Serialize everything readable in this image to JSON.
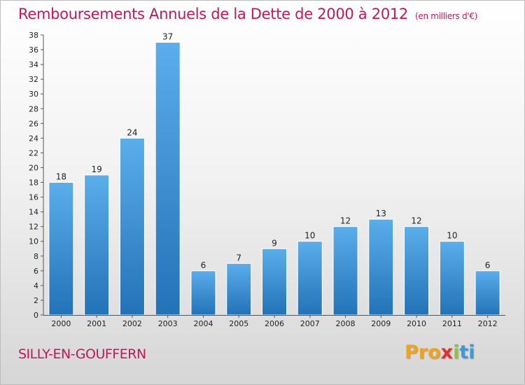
{
  "header": {
    "title": "Remboursements Annuels de la Dette de 2000 à 2012",
    "unit": "(en milliers d'€)"
  },
  "footer": {
    "commune": "SILLY-EN-GOUFFERN",
    "logo_parts": [
      "Pro",
      "x",
      "i",
      "ti"
    ]
  },
  "colors": {
    "accent": "#c2185b",
    "bar_top": "#5aaeea",
    "bar_bottom": "#2272b8"
  },
  "chart_data": {
    "type": "bar",
    "title": "Remboursements Annuels de la Dette de 2000 à 2012",
    "categories": [
      "2000",
      "2001",
      "2002",
      "2003",
      "2004",
      "2005",
      "2006",
      "2007",
      "2008",
      "2009",
      "2010",
      "2011",
      "2012"
    ],
    "values": [
      18,
      19,
      24,
      37,
      6,
      7,
      9,
      10,
      12,
      13,
      12,
      10,
      6
    ],
    "xlabel": "",
    "ylabel": "",
    "ylim": [
      0,
      38
    ],
    "yticks": [
      0,
      2,
      4,
      6,
      8,
      10,
      12,
      14,
      16,
      18,
      20,
      22,
      24,
      26,
      28,
      30,
      32,
      34,
      36,
      38
    ],
    "grid": false,
    "legend": "none"
  }
}
